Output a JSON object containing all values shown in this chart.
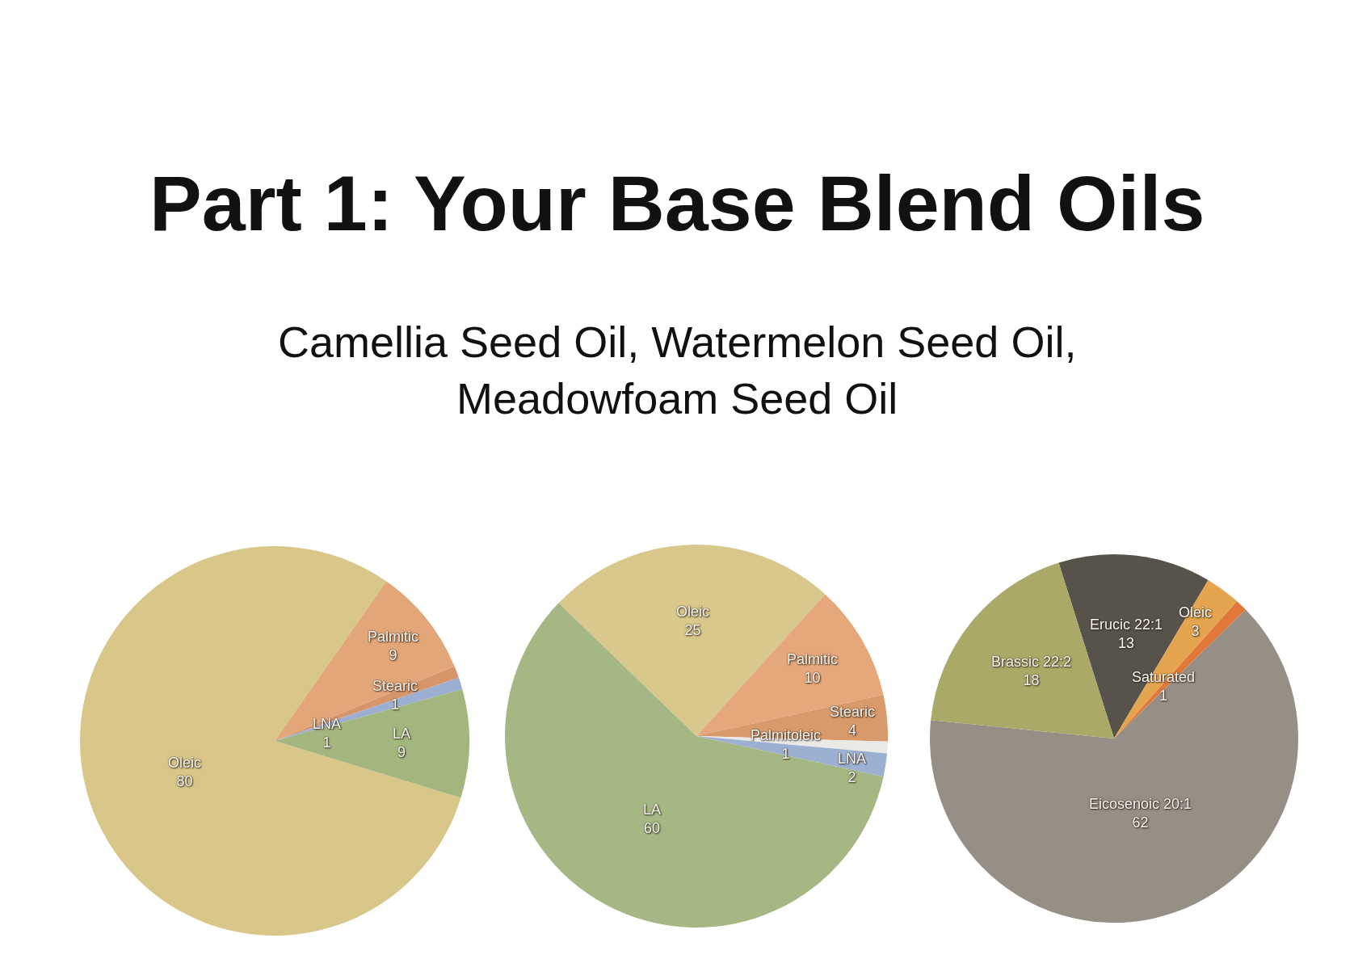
{
  "chart_data": [
    {
      "type": "pie",
      "title": "Part 1: Your Base Blend Oils",
      "subtitle": "Camellia Seed Oil, Watermelon Seed Oil,\nMeadowfoam Seed Oil",
      "categories": [
        "Oleic",
        "Palmitic",
        "Stearic",
        "LNA",
        "LA"
      ],
      "values": [
        80,
        9,
        1,
        1,
        9
      ],
      "colors": [
        "#d9c789",
        "#e3a678",
        "#d69669",
        "#9bafd2",
        "#a2b67d"
      ],
      "data_labels": true
    },
    {
      "type": "pie",
      "categories": [
        "Oleic",
        "Palmitic",
        "Stearic",
        "Palmitoleic",
        "LNA",
        "LA"
      ],
      "values": [
        25,
        10,
        4,
        1,
        2,
        60
      ],
      "colors": [
        "#d9c88b",
        "#e6a87a",
        "#d8996b",
        "#ebe9e6",
        "#9cb0d2",
        "#a5b883"
      ],
      "data_labels": true
    },
    {
      "type": "pie",
      "categories": [
        "Erucic 22:1",
        "Oleic",
        "Saturated",
        "Eicosenoic 20:1",
        "Brassic 22:2"
      ],
      "values": [
        13,
        3,
        1,
        62,
        18
      ],
      "colors": [
        "#57534b",
        "#e4a54e",
        "#e2773a",
        "#958f85",
        "#aaa968"
      ],
      "data_labels": true
    }
  ]
}
